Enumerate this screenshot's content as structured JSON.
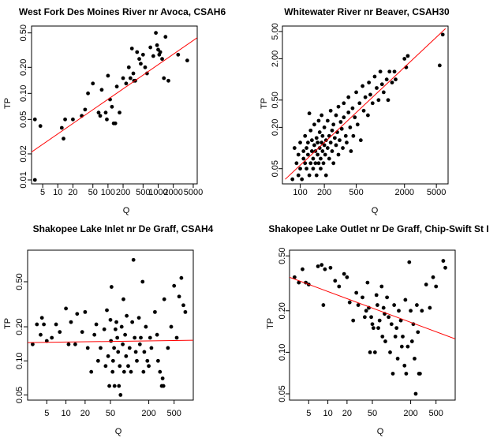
{
  "chart_data": [
    {
      "type": "scatter",
      "title": "West Fork Des Moines River nr Avoca, CSAH6",
      "xlabel": "Q",
      "ylabel": "TP",
      "x_scale": "log",
      "y_scale": "log",
      "xlim": [
        3,
        6000
      ],
      "ylim": [
        0.009,
        0.6
      ],
      "x_ticks": [
        5,
        10,
        20,
        50,
        100,
        200,
        500,
        1000,
        2000,
        5000
      ],
      "x_tick_labels": [
        "5",
        "10",
        "20",
        "50",
        "100",
        "200",
        "500",
        "1000",
        "2000",
        "5000"
      ],
      "y_ticks": [
        0.01,
        0.02,
        0.05,
        0.1,
        0.2,
        0.5
      ],
      "y_tick_labels": [
        "0.01",
        "0.02",
        "0.05",
        "0.10",
        "0.20",
        "0.50"
      ],
      "fit_line": {
        "x": [
          3,
          6000
        ],
        "y": [
          0.021,
          0.44
        ],
        "color": "#ff0000"
      },
      "point_color": "#000000",
      "points": [
        [
          3.5,
          0.01
        ],
        [
          3.5,
          0.05
        ],
        [
          4.5,
          0.042
        ],
        [
          12,
          0.04
        ],
        [
          13,
          0.03
        ],
        [
          14,
          0.05
        ],
        [
          20,
          0.05
        ],
        [
          30,
          0.055
        ],
        [
          35,
          0.065
        ],
        [
          40,
          0.1
        ],
        [
          50,
          0.13
        ],
        [
          65,
          0.06
        ],
        [
          70,
          0.055
        ],
        [
          75,
          0.11
        ],
        [
          90,
          0.06
        ],
        [
          95,
          0.05
        ],
        [
          100,
          0.16
        ],
        [
          110,
          0.085
        ],
        [
          120,
          0.07
        ],
        [
          130,
          0.045
        ],
        [
          140,
          0.045
        ],
        [
          150,
          0.12
        ],
        [
          170,
          0.06
        ],
        [
          200,
          0.15
        ],
        [
          230,
          0.13
        ],
        [
          260,
          0.2
        ],
        [
          280,
          0.15
        ],
        [
          300,
          0.33
        ],
        [
          320,
          0.17
        ],
        [
          330,
          0.14
        ],
        [
          350,
          0.14
        ],
        [
          380,
          0.3
        ],
        [
          420,
          0.25
        ],
        [
          450,
          0.22
        ],
        [
          500,
          0.28
        ],
        [
          550,
          0.2
        ],
        [
          600,
          0.17
        ],
        [
          700,
          0.34
        ],
        [
          800,
          0.27
        ],
        [
          900,
          0.5
        ],
        [
          950,
          0.36
        ],
        [
          1000,
          0.32
        ],
        [
          1050,
          0.28
        ],
        [
          1100,
          0.3
        ],
        [
          1200,
          0.25
        ],
        [
          1300,
          0.15
        ],
        [
          1400,
          0.45
        ],
        [
          1600,
          0.14
        ],
        [
          2500,
          0.28
        ],
        [
          3800,
          0.24
        ]
      ]
    },
    {
      "type": "scatter",
      "title": "Whitewater River nr Beaver, CSAH30",
      "xlabel": "Q",
      "ylabel": "TP",
      "x_scale": "log",
      "y_scale": "log",
      "xlim": [
        60,
        7000
      ],
      "ylim": [
        0.03,
        6
      ],
      "x_ticks": [
        100,
        200,
        500,
        2000,
        5000
      ],
      "x_tick_labels": [
        "100",
        "200",
        "500",
        "2000",
        "5000"
      ],
      "y_ticks": [
        0.05,
        0.2,
        0.5,
        2,
        5
      ],
      "y_tick_labels": [
        "0.05",
        "0.20",
        "0.50",
        "2.00",
        "5.00"
      ],
      "fit_line": {
        "x": [
          65,
          6500
        ],
        "y": [
          0.035,
          5.5
        ],
        "color": "#ff0000"
      },
      "point_color": "#000000",
      "points": [
        [
          80,
          0.035
        ],
        [
          85,
          0.1
        ],
        [
          90,
          0.06
        ],
        [
          95,
          0.08
        ],
        [
          95,
          0.04
        ],
        [
          100,
          0.12
        ],
        [
          100,
          0.05
        ],
        [
          105,
          0.035
        ],
        [
          110,
          0.07
        ],
        [
          110,
          0.09
        ],
        [
          115,
          0.06
        ],
        [
          115,
          0.15
        ],
        [
          120,
          0.05
        ],
        [
          120,
          0.1
        ],
        [
          125,
          0.08
        ],
        [
          125,
          0.12
        ],
        [
          130,
          0.04
        ],
        [
          130,
          0.32
        ],
        [
          135,
          0.06
        ],
        [
          135,
          0.18
        ],
        [
          140,
          0.09
        ],
        [
          140,
          0.13
        ],
        [
          145,
          0.07
        ],
        [
          145,
          0.05
        ],
        [
          150,
          0.11
        ],
        [
          150,
          0.22
        ],
        [
          155,
          0.06
        ],
        [
          155,
          0.09
        ],
        [
          160,
          0.14
        ],
        [
          160,
          0.04
        ],
        [
          165,
          0.08
        ],
        [
          165,
          0.12
        ],
        [
          170,
          0.25
        ],
        [
          170,
          0.06
        ],
        [
          175,
          0.1
        ],
        [
          175,
          0.17
        ],
        [
          180,
          0.07
        ],
        [
          180,
          0.05
        ],
        [
          185,
          0.12
        ],
        [
          185,
          0.3
        ],
        [
          190,
          0.09
        ],
        [
          190,
          0.15
        ],
        [
          195,
          0.06
        ],
        [
          200,
          0.2
        ],
        [
          200,
          0.11
        ],
        [
          205,
          0.08
        ],
        [
          210,
          0.13
        ],
        [
          210,
          0.04
        ],
        [
          220,
          0.25
        ],
        [
          220,
          0.1
        ],
        [
          230,
          0.15
        ],
        [
          230,
          0.07
        ],
        [
          240,
          0.12
        ],
        [
          240,
          0.35
        ],
        [
          250,
          0.09
        ],
        [
          250,
          0.18
        ],
        [
          260,
          0.22
        ],
        [
          260,
          0.06
        ],
        [
          270,
          0.14
        ],
        [
          280,
          0.3
        ],
        [
          280,
          0.11
        ],
        [
          290,
          0.17
        ],
        [
          300,
          0.4
        ],
        [
          300,
          0.08
        ],
        [
          310,
          0.13
        ],
        [
          320,
          0.24
        ],
        [
          330,
          0.19
        ],
        [
          340,
          0.1
        ],
        [
          350,
          0.45
        ],
        [
          350,
          0.28
        ],
        [
          370,
          0.15
        ],
        [
          380,
          0.12
        ],
        [
          400,
          0.55
        ],
        [
          400,
          0.33
        ],
        [
          420,
          0.2
        ],
        [
          430,
          0.09
        ],
        [
          450,
          0.38
        ],
        [
          460,
          0.15
        ],
        [
          480,
          0.28
        ],
        [
          500,
          0.65
        ],
        [
          520,
          0.22
        ],
        [
          550,
          0.45
        ],
        [
          570,
          0.13
        ],
        [
          600,
          0.8
        ],
        [
          620,
          0.35
        ],
        [
          650,
          0.55
        ],
        [
          700,
          0.3
        ],
        [
          720,
          0.9
        ],
        [
          750,
          0.6
        ],
        [
          800,
          0.45
        ],
        [
          850,
          1.1
        ],
        [
          900,
          0.75
        ],
        [
          950,
          0.5
        ],
        [
          1000,
          1.3
        ],
        [
          1050,
          0.85
        ],
        [
          1100,
          0.65
        ],
        [
          1200,
          1.0
        ],
        [
          1250,
          0.5
        ],
        [
          1300,
          1.3
        ],
        [
          1400,
          0.9
        ],
        [
          1500,
          1.3
        ],
        [
          1550,
          1.0
        ],
        [
          2000,
          2.0
        ],
        [
          2100,
          1.5
        ],
        [
          2200,
          2.2
        ],
        [
          5500,
          1.6
        ],
        [
          6000,
          4.5
        ]
      ]
    },
    {
      "type": "scatter",
      "title": "Shakopee Lake Inlet nr De Graff, CSAH4",
      "xlabel": "Q",
      "ylabel": "TP",
      "x_scale": "log",
      "y_scale": "log",
      "xlim": [
        2.5,
        1000
      ],
      "ylim": [
        0.045,
        0.95
      ],
      "x_ticks": [
        5,
        10,
        20,
        50,
        200,
        500
      ],
      "x_tick_labels": [
        "5",
        "10",
        "20",
        "50",
        "200",
        "500"
      ],
      "y_ticks": [
        0.05,
        0.1,
        0.2,
        0.5
      ],
      "y_tick_labels": [
        "0.05",
        "0.10",
        "0.20",
        "0.50"
      ],
      "fit_line": {
        "x": [
          2.5,
          1000
        ],
        "y": [
          0.145,
          0.152
        ],
        "color": "#ff0000"
      },
      "point_color": "#000000",
      "points": [
        [
          3,
          0.14
        ],
        [
          3.5,
          0.21
        ],
        [
          4,
          0.17
        ],
        [
          4.2,
          0.24
        ],
        [
          4.5,
          0.21
        ],
        [
          5,
          0.15
        ],
        [
          6,
          0.16
        ],
        [
          7,
          0.21
        ],
        [
          8,
          0.18
        ],
        [
          10,
          0.29
        ],
        [
          11,
          0.14
        ],
        [
          12,
          0.22
        ],
        [
          14,
          0.14
        ],
        [
          15,
          0.26
        ],
        [
          18,
          0.18
        ],
        [
          20,
          0.27
        ],
        [
          22,
          0.13
        ],
        [
          25,
          0.08
        ],
        [
          28,
          0.17
        ],
        [
          30,
          0.21
        ],
        [
          32,
          0.1
        ],
        [
          35,
          0.13
        ],
        [
          40,
          0.19
        ],
        [
          42,
          0.09
        ],
        [
          44,
          0.28
        ],
        [
          46,
          0.11
        ],
        [
          48,
          0.06
        ],
        [
          50,
          0.23
        ],
        [
          51,
          0.15
        ],
        [
          52,
          0.45
        ],
        [
          54,
          0.08
        ],
        [
          55,
          0.1
        ],
        [
          57,
          0.13
        ],
        [
          58,
          0.06
        ],
        [
          60,
          0.19
        ],
        [
          62,
          0.22
        ],
        [
          64,
          0.16
        ],
        [
          66,
          0.12
        ],
        [
          68,
          0.06
        ],
        [
          70,
          0.09
        ],
        [
          72,
          0.05
        ],
        [
          75,
          0.2
        ],
        [
          78,
          0.14
        ],
        [
          80,
          0.35
        ],
        [
          82,
          0.08
        ],
        [
          85,
          0.17
        ],
        [
          88,
          0.11
        ],
        [
          90,
          0.25
        ],
        [
          95,
          0.09
        ],
        [
          100,
          0.13
        ],
        [
          105,
          0.08
        ],
        [
          110,
          0.22
        ],
        [
          115,
          0.78
        ],
        [
          120,
          0.16
        ],
        [
          125,
          0.12
        ],
        [
          130,
          0.1
        ],
        [
          140,
          0.24
        ],
        [
          145,
          0.14
        ],
        [
          150,
          0.16
        ],
        [
          160,
          0.5
        ],
        [
          165,
          0.08
        ],
        [
          170,
          0.12
        ],
        [
          180,
          0.2
        ],
        [
          190,
          0.1
        ],
        [
          200,
          0.09
        ],
        [
          210,
          0.16
        ],
        [
          220,
          0.13
        ],
        [
          250,
          0.27
        ],
        [
          270,
          0.17
        ],
        [
          280,
          0.1
        ],
        [
          300,
          0.08
        ],
        [
          320,
          0.06
        ],
        [
          330,
          0.07
        ],
        [
          340,
          0.06
        ],
        [
          350,
          0.35
        ],
        [
          400,
          0.13
        ],
        [
          450,
          0.2
        ],
        [
          500,
          0.46
        ],
        [
          550,
          0.16
        ],
        [
          600,
          0.37
        ],
        [
          650,
          0.54
        ],
        [
          700,
          0.31
        ],
        [
          750,
          0.27
        ]
      ]
    },
    {
      "type": "scatter",
      "title": "Shakopee Lake Outlet nr De Graff, Chip-Swift St I",
      "xlabel": "Q",
      "ylabel": "TP",
      "x_scale": "log",
      "y_scale": "log",
      "xlim": [
        2.5,
        1000
      ],
      "ylim": [
        0.045,
        0.55
      ],
      "x_ticks": [
        5,
        10,
        20,
        50,
        200,
        500
      ],
      "x_tick_labels": [
        "5",
        "10",
        "20",
        "50",
        "200",
        "500"
      ],
      "y_ticks": [
        0.05,
        0.1,
        0.2,
        0.5
      ],
      "y_tick_labels": [
        "0.05",
        "0.10",
        "0.20",
        "0.50"
      ],
      "fit_line": {
        "x": [
          2.5,
          1000
        ],
        "y": [
          0.35,
          0.125
        ],
        "color": "#ff0000"
      },
      "point_color": "#000000",
      "points": [
        [
          3,
          0.35
        ],
        [
          3.5,
          0.32
        ],
        [
          4,
          0.4
        ],
        [
          4.5,
          0.32
        ],
        [
          5,
          0.31
        ],
        [
          7,
          0.42
        ],
        [
          8,
          0.43
        ],
        [
          8.5,
          0.22
        ],
        [
          9,
          0.4
        ],
        [
          11,
          0.41
        ],
        [
          13,
          0.33
        ],
        [
          15,
          0.3
        ],
        [
          18,
          0.37
        ],
        [
          20,
          0.35
        ],
        [
          22,
          0.23
        ],
        [
          25,
          0.17
        ],
        [
          28,
          0.27
        ],
        [
          30,
          0.22
        ],
        [
          35,
          0.25
        ],
        [
          38,
          0.18
        ],
        [
          40,
          0.2
        ],
        [
          42,
          0.32
        ],
        [
          44,
          0.21
        ],
        [
          46,
          0.1
        ],
        [
          48,
          0.18
        ],
        [
          50,
          0.16
        ],
        [
          52,
          0.15
        ],
        [
          55,
          0.1
        ],
        [
          58,
          0.26
        ],
        [
          60,
          0.22
        ],
        [
          62,
          0.15
        ],
        [
          65,
          0.17
        ],
        [
          70,
          0.3
        ],
        [
          72,
          0.13
        ],
        [
          75,
          0.21
        ],
        [
          78,
          0.19
        ],
        [
          80,
          0.12
        ],
        [
          85,
          0.25
        ],
        [
          90,
          0.18
        ],
        [
          95,
          0.1
        ],
        [
          100,
          0.16
        ],
        [
          105,
          0.07
        ],
        [
          110,
          0.22
        ],
        [
          115,
          0.13
        ],
        [
          120,
          0.15
        ],
        [
          125,
          0.09
        ],
        [
          130,
          0.2
        ],
        [
          140,
          0.17
        ],
        [
          145,
          0.11
        ],
        [
          150,
          0.13
        ],
        [
          160,
          0.08
        ],
        [
          165,
          0.24
        ],
        [
          170,
          0.07
        ],
        [
          180,
          0.11
        ],
        [
          190,
          0.45
        ],
        [
          200,
          0.2
        ],
        [
          210,
          0.12
        ],
        [
          220,
          0.16
        ],
        [
          230,
          0.09
        ],
        [
          240,
          0.05
        ],
        [
          250,
          0.22
        ],
        [
          260,
          0.14
        ],
        [
          270,
          0.07
        ],
        [
          280,
          0.07
        ],
        [
          300,
          0.2
        ],
        [
          350,
          0.31
        ],
        [
          400,
          0.21
        ],
        [
          450,
          0.35
        ],
        [
          500,
          0.3
        ],
        [
          650,
          0.46
        ],
        [
          700,
          0.41
        ]
      ]
    }
  ]
}
